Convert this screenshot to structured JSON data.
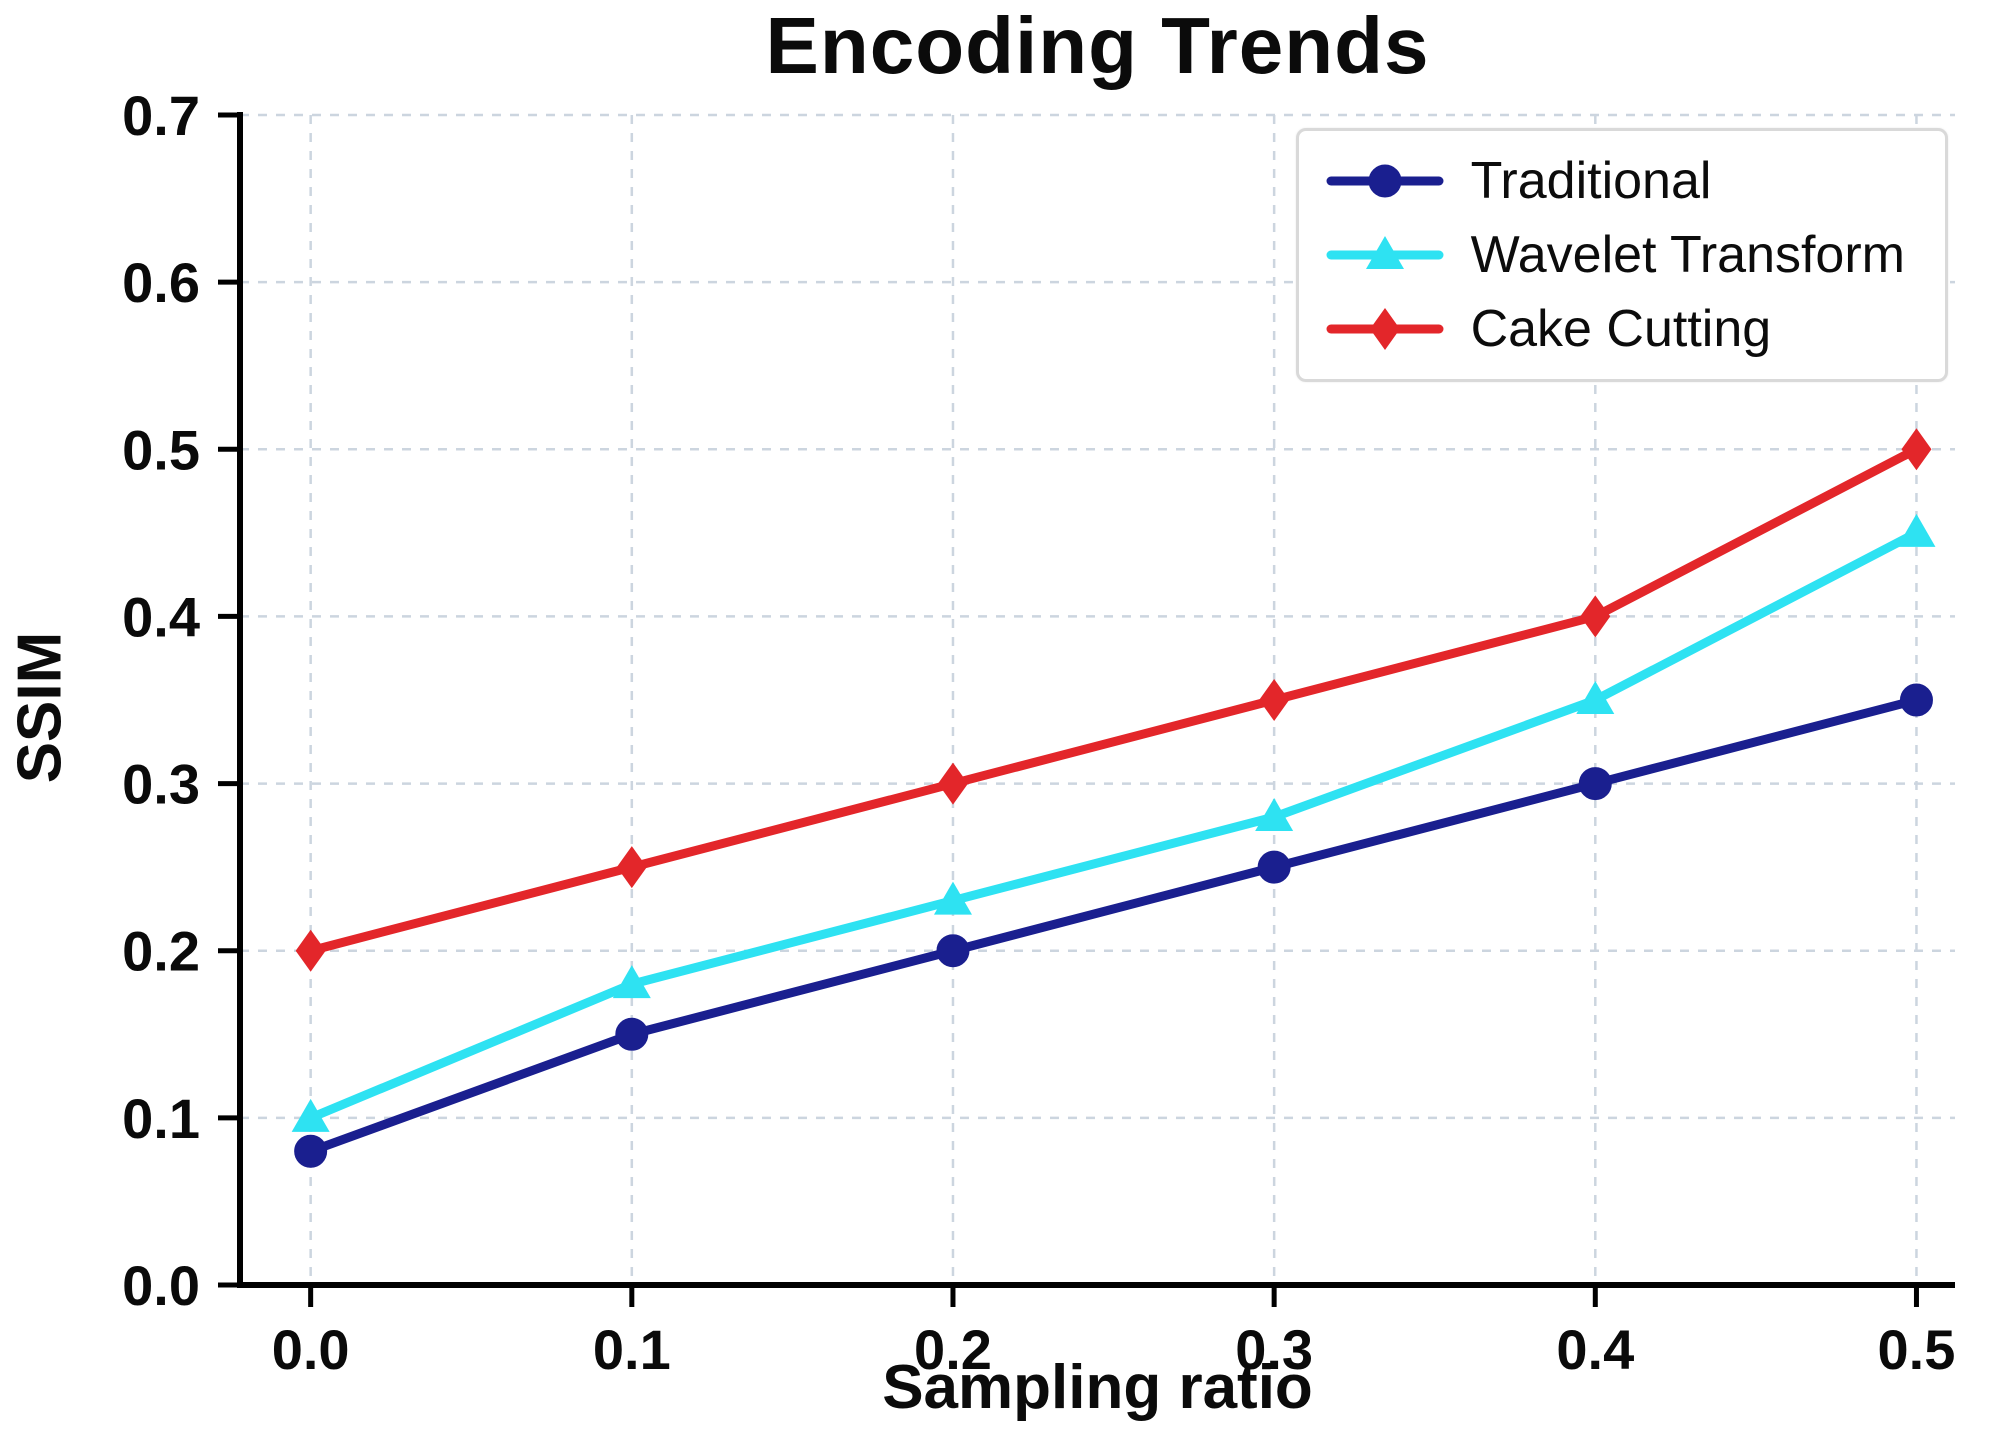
{
  "chart_data": {
    "type": "line",
    "title": "Encoding Trends",
    "xlabel": "Sampling ratio",
    "ylabel": "SSIM",
    "x": [
      0.0,
      0.1,
      0.2,
      0.3,
      0.4,
      0.5
    ],
    "xlim": [
      -0.022,
      0.512
    ],
    "ylim": [
      0.0,
      0.7
    ],
    "xticks": [
      "0.0",
      "0.1",
      "0.2",
      "0.3",
      "0.4",
      "0.5"
    ],
    "yticks": [
      "0.0",
      "0.1",
      "0.2",
      "0.3",
      "0.4",
      "0.5",
      "0.6",
      "0.7"
    ],
    "grid": true,
    "grid_style": "dashed",
    "legend_position": "upper right",
    "series": [
      {
        "name": "Traditional",
        "color": "#1a1f8f",
        "marker": "circle",
        "values": [
          0.08,
          0.15,
          0.2,
          0.25,
          0.3,
          0.35
        ]
      },
      {
        "name": "Wavelet Transform",
        "color": "#2ee2f2",
        "marker": "triangle",
        "values": [
          0.1,
          0.18,
          0.23,
          0.28,
          0.35,
          0.45
        ]
      },
      {
        "name": "Cake Cutting",
        "color": "#e3262a",
        "marker": "diamond",
        "values": [
          0.2,
          0.25,
          0.3,
          0.35,
          0.4,
          0.5
        ]
      }
    ]
  }
}
